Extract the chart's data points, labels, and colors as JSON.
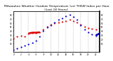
{
  "title": "Milwaukee Weather Outdoor Temperature (vs) THSW Index per Hour (Last 24 Hours)",
  "title_fontsize": 3.2,
  "background_color": "#ffffff",
  "plot_bg_color": "#ffffff",
  "grid_color": "#888888",
  "xlim": [
    0,
    23
  ],
  "ylim": [
    -10,
    90
  ],
  "hours": [
    0,
    1,
    2,
    3,
    4,
    5,
    6,
    7,
    8,
    9,
    10,
    11,
    12,
    13,
    14,
    15,
    16,
    17,
    18,
    19,
    20,
    21,
    22,
    23
  ],
  "temp": [
    22,
    28,
    30,
    28,
    35,
    37,
    37,
    38,
    45,
    52,
    56,
    60,
    62,
    64,
    66,
    68,
    66,
    62,
    57,
    52,
    48,
    46,
    44,
    48
  ],
  "thsw": [
    -5,
    -2,
    2,
    5,
    8,
    12,
    18,
    28,
    42,
    50,
    55,
    62,
    68,
    73,
    78,
    80,
    75,
    68,
    55,
    45,
    38,
    32,
    30,
    35
  ],
  "temp_color": "#dd0000",
  "thsw_color": "#0000cc",
  "dot_size": 2.5,
  "temp_solid_start": 4,
  "temp_solid_end": 7,
  "thsw_solid_start": 22,
  "thsw_solid_end": 23,
  "right_axis_ticks": [
    10,
    20,
    30,
    40,
    50,
    60,
    70,
    80
  ],
  "right_axis_labels": [
    "10",
    "20",
    "30",
    "40",
    "50",
    "60",
    "70",
    "80"
  ],
  "left_axis_ticks": [
    10,
    20,
    30,
    40,
    50,
    60,
    70,
    80
  ],
  "left_axis_labels": [
    "10",
    "20",
    "30",
    "40",
    "50",
    "60",
    "70",
    "80"
  ],
  "grid_hours": [
    2,
    4,
    6,
    8,
    10,
    12,
    14,
    16,
    18,
    20,
    22
  ]
}
